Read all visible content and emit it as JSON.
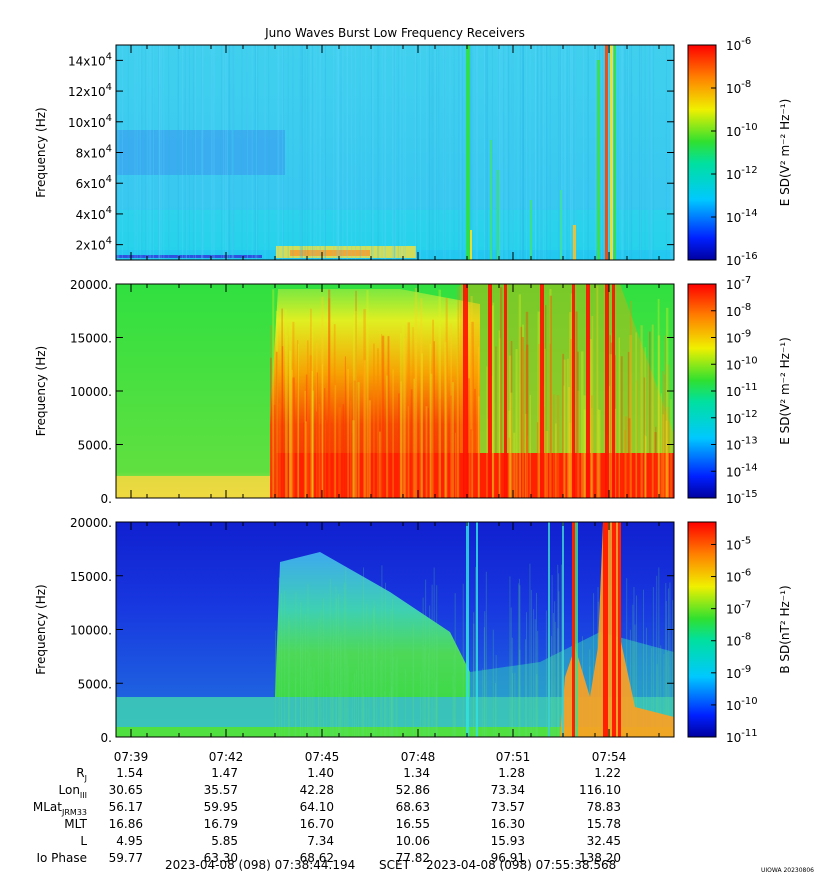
{
  "chart_data": [
    {
      "type": "heatmap",
      "title": "Juno Waves Burst Low Frequency Receivers",
      "ylabel": "Frequency (Hz)",
      "y_ticks": [
        {
          "value": 20000,
          "label": "2x10",
          "exp": "4"
        },
        {
          "value": 40000,
          "label": "4x10",
          "exp": "4"
        },
        {
          "value": 60000,
          "label": "6x10",
          "exp": "4"
        },
        {
          "value": 80000,
          "label": "8x10",
          "exp": "4"
        },
        {
          "value": 100000,
          "label": "10x10",
          "exp": "4"
        },
        {
          "value": 120000,
          "label": "12x10",
          "exp": "4"
        },
        {
          "value": 140000,
          "label": "14x10",
          "exp": "4"
        }
      ],
      "ylim": [
        10000,
        150000
      ],
      "colorbar": {
        "label": "E SD(V² m⁻² Hz⁻¹)",
        "scale": "log",
        "range_exp": [
          -16,
          -6
        ],
        "ticks": [
          "10^-6",
          "10^-8",
          "10^-10",
          "10^-12",
          "10^-14",
          "10^-16"
        ]
      }
    },
    {
      "type": "heatmap",
      "ylabel": "Frequency (Hz)",
      "y_ticks": [
        {
          "value": 0,
          "label": "0."
        },
        {
          "value": 5000,
          "label": "5000."
        },
        {
          "value": 10000,
          "label": "10000."
        },
        {
          "value": 15000,
          "label": "15000."
        },
        {
          "value": 20000,
          "label": "20000."
        }
      ],
      "ylim": [
        0,
        20000
      ],
      "colorbar": {
        "label": "E SD(V² m⁻² Hz⁻¹)",
        "scale": "log",
        "range_exp": [
          -15,
          -7
        ],
        "ticks": [
          "10^-7",
          "10^-8",
          "10^-9",
          "10^-10",
          "10^-11",
          "10^-12",
          "10^-13",
          "10^-14",
          "10^-15"
        ]
      }
    },
    {
      "type": "heatmap",
      "ylabel": "Frequency (Hz)",
      "y_ticks": [
        {
          "value": 0,
          "label": "0."
        },
        {
          "value": 5000,
          "label": "5000."
        },
        {
          "value": 10000,
          "label": "10000."
        },
        {
          "value": 15000,
          "label": "15000."
        },
        {
          "value": 20000,
          "label": "20000."
        }
      ],
      "ylim": [
        0,
        20000
      ],
      "colorbar": {
        "label": "B SD(nT² Hz⁻¹)",
        "scale": "log",
        "range_exp": [
          -11,
          -4.3
        ],
        "ticks": [
          "10^-5",
          "10^-6",
          "10^-7",
          "10^-8",
          "10^-9",
          "10^-10",
          "10^-11"
        ]
      }
    }
  ],
  "x_axis": {
    "ticks": [
      "07:39",
      "07:42",
      "07:45",
      "07:48",
      "07:51",
      "07:54"
    ],
    "start": "2023-04-08 (098) 07:38:44.194",
    "scet": "SCET",
    "end": "2023-04-08 (098) 07:55:38.568"
  },
  "ephemeris": [
    {
      "name": "R",
      "sub": "J",
      "values": [
        "1.54",
        "1.47",
        "1.40",
        "1.34",
        "1.28",
        "1.22"
      ]
    },
    {
      "name": "Lon",
      "sub": "III",
      "values": [
        "30.65",
        "35.57",
        "42.28",
        "52.86",
        "73.34",
        "116.10"
      ]
    },
    {
      "name": "MLat",
      "sub": "JRM33",
      "values": [
        "56.17",
        "59.95",
        "64.10",
        "68.63",
        "73.57",
        "78.83"
      ]
    },
    {
      "name": "MLT",
      "sub": "",
      "values": [
        "16.86",
        "16.79",
        "16.70",
        "16.55",
        "16.30",
        "15.78"
      ]
    },
    {
      "name": "L",
      "sub": "",
      "values": [
        "4.95",
        "5.85",
        "7.34",
        "10.06",
        "15.93",
        "32.45"
      ]
    },
    {
      "name": "Io Phase",
      "sub": "",
      "values": [
        "59.77",
        "63.30",
        "68.62",
        "77.82",
        "96.91",
        "138.20"
      ]
    }
  ],
  "credit": "UIOWA 20230806",
  "colors": {
    "blue": "#1020d0",
    "cyan": "#30d0ff",
    "green": "#30e040",
    "yellow": "#ffe020",
    "red": "#ff2000"
  }
}
